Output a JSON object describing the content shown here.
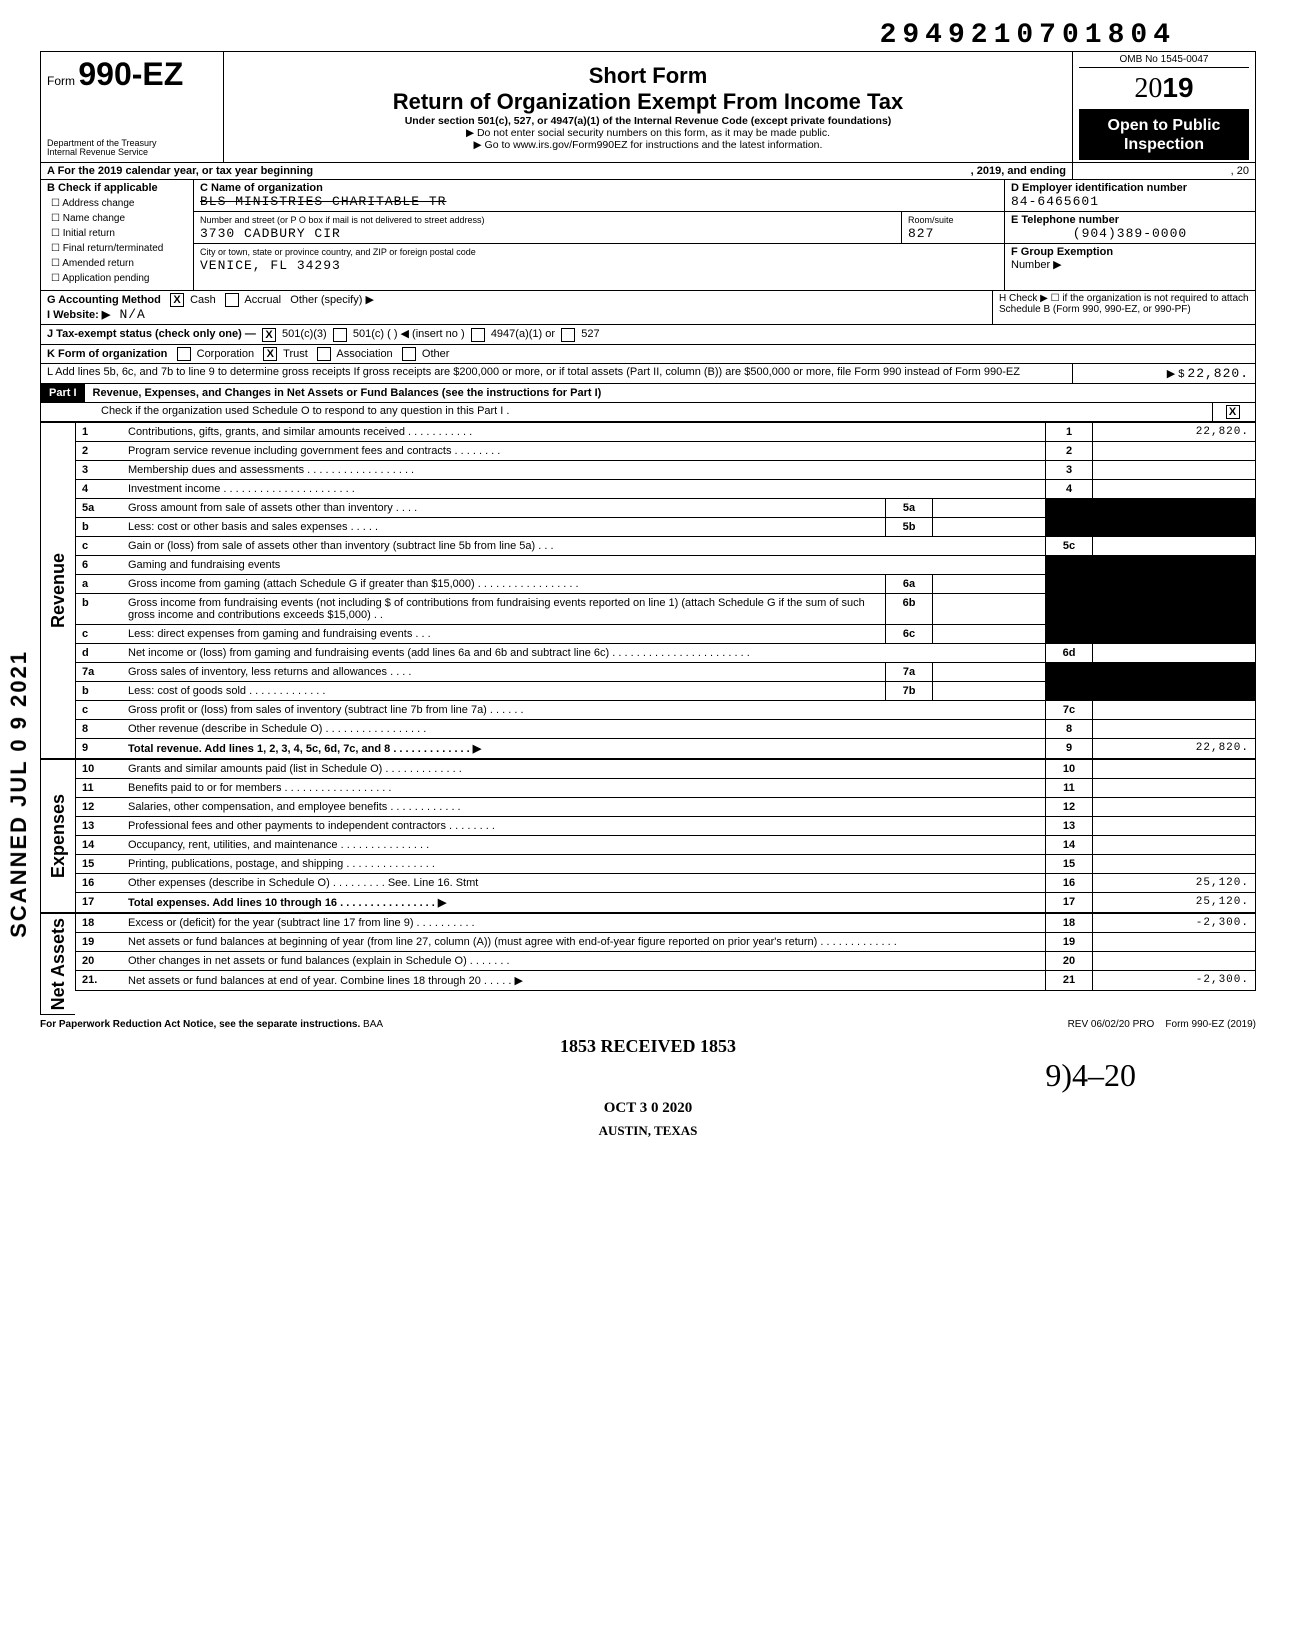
{
  "top_number": "2949210701804",
  "form_label": "Form",
  "form_number": "990-EZ",
  "dept1": "Department of the Treasury",
  "dept2": "Internal Revenue Service",
  "short_form": "Short Form",
  "title_main": "Return of Organization Exempt From Income Tax",
  "under_section": "Under section 501(c), 527, or 4947(a)(1) of the Internal Revenue Code (except private foundations)",
  "do_not_enter": "Do not enter social security numbers on this form, as it may be made public.",
  "go_to": "Go to www.irs.gov/Form990EZ for instructions and the latest information.",
  "omb": "OMB No 1545-0047",
  "year_prefix": "20",
  "year": "19",
  "open_public_l1": "Open to Public",
  "open_public_l2": "Inspection",
  "line_a": "A For the 2019 calendar year, or tax year beginning",
  "line_a_mid": ", 2019, and ending",
  "line_a_end": ", 20",
  "b_label": "B Check if applicable",
  "b_items": [
    "Address change",
    "Name change",
    "Initial return",
    "Final return/terminated",
    "Amended return",
    "Application pending"
  ],
  "c_label": "C Name of organization",
  "c_value": "BLS MINISTRIES CHARITABLE TR",
  "addr_label": "Number and street (or P O box if mail is not delivered to street address)",
  "addr_value": "3730 CADBURY CIR",
  "room_label": "Room/suite",
  "room_value": "827",
  "city_label": "City or town, state or province country, and ZIP or foreign postal code",
  "city_value": "VENICE, FL 34293",
  "d_label": "D Employer identification number",
  "d_value": "84-6465601",
  "e_label": "E Telephone number",
  "e_value": "(904)389-0000",
  "f_label": "F Group Exemption",
  "f_label2": "Number ▶",
  "g_label": "G Accounting Method",
  "g_cash": "Cash",
  "g_accrual": "Accrual",
  "g_other": "Other (specify) ▶",
  "i_label": "I  Website: ▶",
  "i_value": "N/A",
  "h_label": "H Check ▶ ☐ if the organization is not required to attach Schedule B (Form 990, 990-EZ, or 990-PF)",
  "j_label": "J Tax-exempt status (check only one) —",
  "j_501c3": "501(c)(3)",
  "j_501c": "501(c) (        ) ◀ (insert no )",
  "j_4947": "4947(a)(1) or",
  "j_527": "527",
  "k_label": "K Form of organization",
  "k_corp": "Corporation",
  "k_trust": "Trust",
  "k_assoc": "Association",
  "k_other": "Other",
  "l_text": "L Add lines 5b, 6c, and 7b to line 9 to determine gross receipts  If gross receipts are $200,000 or more, or if total assets (Part II, column (B)) are $500,000 or more, file Form 990 instead of Form 990-EZ",
  "l_amount": "22,820.",
  "part1_label": "Part I",
  "part1_title": "Revenue, Expenses, and Changes in Net Assets or Fund Balances (see the instructions for Part I)",
  "part1_check": "Check if the organization used Schedule O to respond to any question in this Part I .",
  "revenue_label": "Revenue",
  "expenses_label": "Expenses",
  "netassets_label": "Net Assets",
  "scanned": "SCANNED  JUL 0 9 2021",
  "lines": {
    "1": {
      "num": "1",
      "text": "Contributions, gifts, grants, and similar amounts received . . . . . . . . . . .",
      "box": "1",
      "amt": "22,820."
    },
    "2": {
      "num": "2",
      "text": "Program service revenue including government fees and contracts . . . . . . . .",
      "box": "2",
      "amt": ""
    },
    "3": {
      "num": "3",
      "text": "Membership dues and assessments . . . . . . . . . . . . . . . . . .",
      "box": "3",
      "amt": ""
    },
    "4": {
      "num": "4",
      "text": "Investment income . . . . . . . . . . . . . . . . . . . . . .",
      "box": "4",
      "amt": ""
    },
    "5a": {
      "num": "5a",
      "text": "Gross amount from sale of assets other than inventory . . . .",
      "ibox": "5a"
    },
    "5b": {
      "num": "b",
      "text": "Less: cost or other basis and sales expenses . . . . .",
      "ibox": "5b"
    },
    "5c": {
      "num": "c",
      "text": "Gain or (loss) from sale of assets other than inventory (subtract line 5b from line 5a) . . .",
      "box": "5c",
      "amt": ""
    },
    "6": {
      "num": "6",
      "text": "Gaming and fundraising events"
    },
    "6a": {
      "num": "a",
      "text": "Gross income from gaming (attach Schedule G if greater than $15,000) . . . . . . . . . . . . . . . . .",
      "ibox": "6a"
    },
    "6b": {
      "num": "b",
      "text": "Gross income from fundraising events (not including  $                  of contributions from fundraising events reported on line 1) (attach Schedule G if the sum of such gross income and contributions exceeds $15,000) . .",
      "ibox": "6b"
    },
    "6c": {
      "num": "c",
      "text": "Less: direct expenses from gaming and fundraising events . . .",
      "ibox": "6c"
    },
    "6d": {
      "num": "d",
      "text": "Net income or (loss) from gaming and fundraising events (add lines 6a and 6b and subtract line 6c) . . . . . . . . . . . . . . . . . . . . . . .",
      "box": "6d",
      "amt": ""
    },
    "7a": {
      "num": "7a",
      "text": "Gross sales of inventory, less returns and allowances . . . .",
      "ibox": "7a"
    },
    "7b": {
      "num": "b",
      "text": "Less: cost of goods sold . . . . . . . . . . . . .",
      "ibox": "7b"
    },
    "7c": {
      "num": "c",
      "text": "Gross profit or (loss) from sales of inventory (subtract line 7b from line 7a) . . . . . .",
      "box": "7c",
      "amt": ""
    },
    "8": {
      "num": "8",
      "text": "Other revenue (describe in Schedule O) . . . . . . . . . . . . . . . . .",
      "box": "8",
      "amt": ""
    },
    "9": {
      "num": "9",
      "text": "Total revenue. Add lines 1, 2, 3, 4, 5c, 6d, 7c, and 8 . . . . . . . . . . . . . ▶",
      "box": "9",
      "amt": "22,820.",
      "bold": true
    },
    "10": {
      "num": "10",
      "text": "Grants and similar amounts paid (list in Schedule O) . . . . . . . . . . . . .",
      "box": "10",
      "amt": ""
    },
    "11": {
      "num": "11",
      "text": "Benefits paid to or for members . . . . . . . . . . . . . . . . . .",
      "box": "11",
      "amt": ""
    },
    "12": {
      "num": "12",
      "text": "Salaries, other compensation, and employee benefits . . . . . . . . . . . .",
      "box": "12",
      "amt": ""
    },
    "13": {
      "num": "13",
      "text": "Professional fees and other payments to independent contractors . . . . . . . .",
      "box": "13",
      "amt": ""
    },
    "14": {
      "num": "14",
      "text": "Occupancy, rent, utilities, and maintenance . . . . . . . . . . . . . . .",
      "box": "14",
      "amt": ""
    },
    "15": {
      "num": "15",
      "text": "Printing, publications, postage, and shipping . . . . . . . . . . . . . . .",
      "box": "15",
      "amt": ""
    },
    "16": {
      "num": "16",
      "text": "Other expenses (describe in Schedule O) . . . . . . . . . See. Line 16. Stmt",
      "box": "16",
      "amt": "25,120."
    },
    "17": {
      "num": "17",
      "text": "Total expenses. Add lines 10 through 16 . . . . . . . . . . . . . . . . ▶",
      "box": "17",
      "amt": "25,120.",
      "bold": true
    },
    "18": {
      "num": "18",
      "text": "Excess or (deficit) for the year (subtract line 17 from line 9) . . . . . . . . . .",
      "box": "18",
      "amt": "-2,300."
    },
    "19": {
      "num": "19",
      "text": "Net assets or fund balances at beginning of year (from line 27, column (A)) (must agree with end-of-year figure reported on prior year's return) . . . . . . . . . . . . .",
      "box": "19",
      "amt": ""
    },
    "20": {
      "num": "20",
      "text": "Other changes in net assets or fund balances (explain in Schedule O) . . . . . . .",
      "box": "20",
      "amt": ""
    },
    "21": {
      "num": "21.",
      "text": "Net assets or fund balances at end of year. Combine lines 18 through 20 . . . . . ▶",
      "box": "21",
      "amt": "-2,300."
    }
  },
  "footer_left": "For Paperwork Reduction Act Notice, see the separate instructions.",
  "footer_mid": "BAA",
  "footer_rev": "REV 06/02/20 PRO",
  "footer_form": "Form 990-EZ (2019)",
  "stamp_received": "1853 RECEIVED 1853",
  "stamp_date": "OCT 3 0 2020",
  "stamp_loc": "AUSTIN, TEXAS",
  "handwriting": "9)4–20"
}
